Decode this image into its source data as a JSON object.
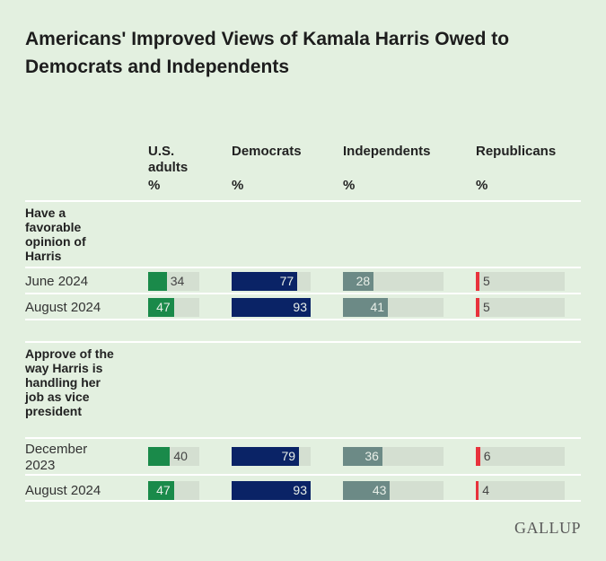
{
  "chart_data": {
    "type": "bar",
    "title": "Americans' Improved Views of Kamala Harris Owed to Democrats and Independents",
    "columns": [
      {
        "name": "U.S. adults",
        "unit": "%",
        "color": "#1a8a4a"
      },
      {
        "name": "Democrats",
        "unit": "%",
        "color": "#0a2366"
      },
      {
        "name": "Independents",
        "unit": "%",
        "color": "#6c8a86"
      },
      {
        "name": "Republicans",
        "unit": "%",
        "color": "#e8323c"
      }
    ],
    "sections": [
      {
        "label": "Have a favorable opinion of Harris",
        "rows": [
          {
            "label": "June 2024",
            "values": [
              34,
              77,
              28,
              5
            ]
          },
          {
            "label": "August 2024",
            "values": [
              47,
              93,
              41,
              5
            ]
          }
        ]
      },
      {
        "label": "Approve of the way Harris is handling her job as vice president",
        "rows": [
          {
            "label": "December 2023",
            "values": [
              40,
              79,
              36,
              6
            ]
          },
          {
            "label": "August 2024",
            "values": [
              47,
              93,
              43,
              4
            ]
          }
        ]
      }
    ],
    "xlim": [
      0,
      100
    ]
  },
  "logo": "GALLUP"
}
